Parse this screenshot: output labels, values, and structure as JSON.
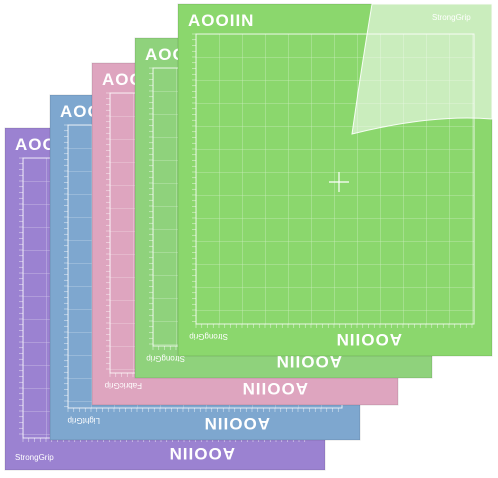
{
  "mats": [
    {
      "logo": "AOOIIN",
      "grip": "StrongGrip",
      "color": "#9b82d1"
    },
    {
      "logo": "AOOIIN",
      "grip": "LightGrip",
      "color": "#7ea7cf"
    },
    {
      "logo": "AOOIIN",
      "grip": "FabricGrip",
      "color": "#dea5bf"
    },
    {
      "logo": "AOOIIN",
      "grip": "StrongGrip",
      "color": "#8fd27c"
    },
    {
      "logo": "AOOIIN",
      "grip": "StrongGrip",
      "color": "#8bd76d"
    }
  ]
}
